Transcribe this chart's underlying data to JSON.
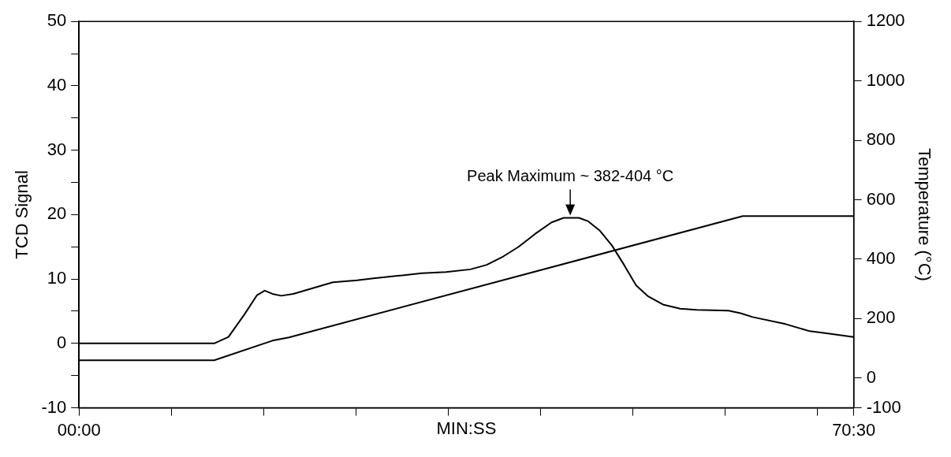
{
  "chart_data": {
    "type": "line",
    "xlabel": "MIN:SS",
    "ylabel": "TCD Signal",
    "y2label": "Temperature (°C)",
    "xlim": [
      0,
      70.5
    ],
    "xticks": [
      {
        "value": 0,
        "label": "00:00"
      },
      {
        "value": 8.4,
        "label": null
      },
      {
        "value": 16.8,
        "label": null
      },
      {
        "value": 25.2,
        "label": null
      },
      {
        "value": 33.6,
        "label": null
      },
      {
        "value": 42,
        "label": null
      },
      {
        "value": 50.4,
        "label": null
      },
      {
        "value": 58.8,
        "label": null
      },
      {
        "value": 67.2,
        "label": null
      },
      {
        "value": 70.5,
        "label": "70:30"
      }
    ],
    "ylim": [
      -10,
      50
    ],
    "yticks": [
      -10,
      {
        "value": -5,
        "label": null
      },
      0,
      {
        "value": 5,
        "label": null
      },
      10,
      {
        "value": 15,
        "label": null
      },
      20,
      {
        "value": 25,
        "label": null
      },
      30,
      {
        "value": 35,
        "label": null
      },
      40,
      {
        "value": 45,
        "label": null
      },
      50
    ],
    "y2lim": [
      -100,
      1200
    ],
    "y2ticks": [
      -100,
      0,
      200,
      400,
      600,
      800,
      1000,
      1200
    ],
    "grid": false,
    "legend": false,
    "marker": "none",
    "line_style": "solid",
    "annotations": [
      {
        "text": "Peak Maximum ~ 382-404 °C",
        "x": 44.7,
        "y": 19.5
      }
    ],
    "series": [
      {
        "color": "#000000",
        "x": [
          0,
          12.3,
          13.6,
          15.05,
          16.2,
          16.9,
          17.6,
          18.4,
          19.5,
          20.9,
          23.1,
          25.3,
          26.8,
          29,
          31.2,
          33.4,
          35.6,
          37.1,
          38.6,
          40,
          41.5,
          43,
          44.1,
          45.5,
          46.3,
          47.4,
          48.5,
          49.6,
          50.7,
          51.8,
          53.2,
          54.7,
          56.2,
          59.1,
          60.2,
          61.3,
          64.3,
          66.5,
          67.9,
          70.5
        ],
        "values": [
          0,
          0,
          1,
          4.5,
          7.5,
          8.2,
          7.7,
          7.4,
          7.7,
          8.4,
          9.5,
          9.8,
          10.1,
          10.5,
          10.9,
          11.1,
          11.5,
          12.2,
          13.5,
          15,
          17,
          18.8,
          19.5,
          19.5,
          19,
          17.5,
          15.2,
          12.2,
          9,
          7.3,
          6,
          5.4,
          5.2,
          5.1,
          4.7,
          4.1,
          3,
          1.9,
          1.6,
          1
        ]
      },
      {
        "color": "#000000",
        "axis": "y2",
        "x": [
          0,
          12.3,
          17.6,
          19.1,
          60.4,
          70.5
        ],
        "values": [
          60,
          60,
          126,
          137,
          545,
          545
        ]
      }
    ]
  }
}
